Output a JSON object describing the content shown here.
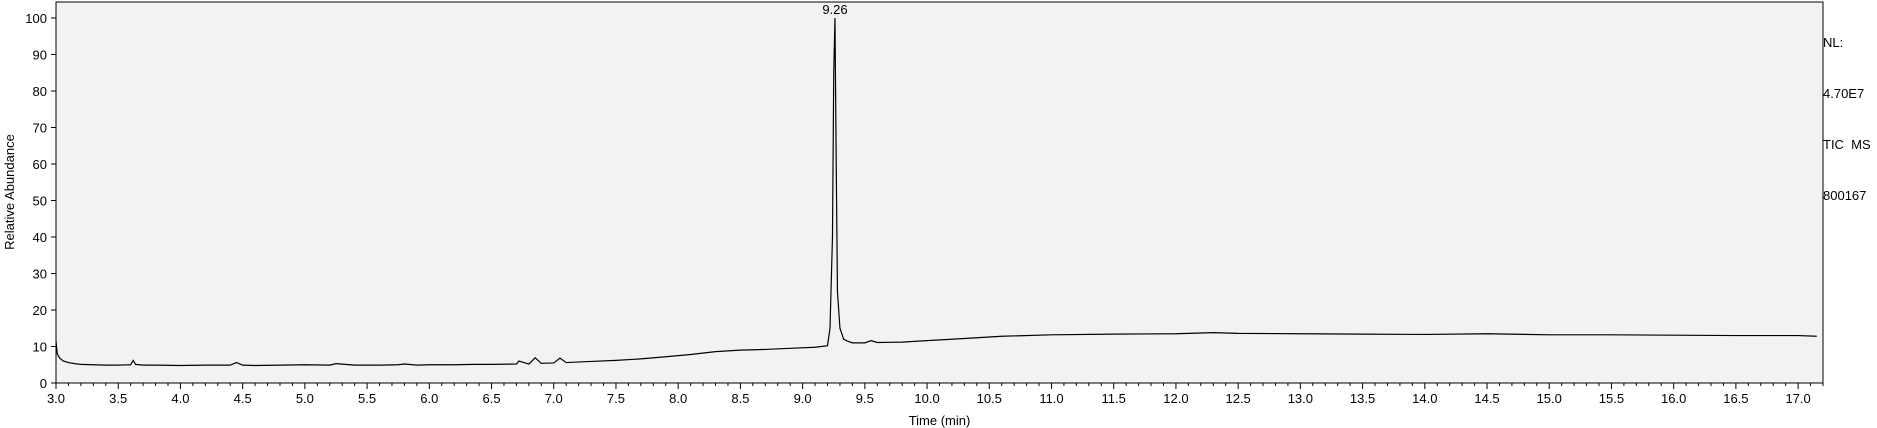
{
  "chart_data": {
    "type": "line",
    "title": "",
    "xlabel": "Time (min)",
    "ylabel": "Relative Abundance",
    "xlim": [
      3.0,
      17.2
    ],
    "ylim": [
      0,
      100
    ],
    "x_ticks": [
      "3.0",
      "3.5",
      "4.0",
      "4.5",
      "5.0",
      "5.5",
      "6.0",
      "6.5",
      "7.0",
      "7.5",
      "8.0",
      "8.5",
      "9.0",
      "9.5",
      "10.0",
      "10.5",
      "11.0",
      "11.5",
      "12.0",
      "12.5",
      "13.0",
      "13.5",
      "14.0",
      "14.5",
      "15.0",
      "15.5",
      "16.0",
      "16.5",
      "17.0"
    ],
    "y_ticks": [
      "0",
      "10",
      "20",
      "30",
      "40",
      "50",
      "60",
      "70",
      "80",
      "90",
      "100"
    ],
    "grid": false,
    "peak_annotation": {
      "label": "9.26",
      "x": 9.26,
      "y": 100
    },
    "info_lines": [
      "NL:",
      "4.70E7",
      "TIC  MS",
      "800167"
    ],
    "series": [
      {
        "x": [
          3.0,
          3.01,
          3.03,
          3.06,
          3.1,
          3.15,
          3.2,
          3.3,
          3.4,
          3.5,
          3.6,
          3.62,
          3.64,
          3.7,
          3.8,
          4.0,
          4.2,
          4.4,
          4.45,
          4.5,
          4.6,
          4.8,
          5.0,
          5.2,
          5.25,
          5.4,
          5.6,
          5.75,
          5.8,
          5.9,
          6.0,
          6.2,
          6.35,
          6.5,
          6.7,
          6.72,
          6.8,
          6.85,
          6.9,
          7.0,
          7.05,
          7.1,
          7.3,
          7.5,
          7.7,
          7.9,
          8.1,
          8.3,
          8.5,
          8.7,
          8.9,
          9.1,
          9.2,
          9.22,
          9.24,
          9.25,
          9.26,
          9.27,
          9.28,
          9.3,
          9.33,
          9.36,
          9.4,
          9.5,
          9.55,
          9.6,
          9.8,
          10.0,
          10.3,
          10.6,
          11.0,
          11.5,
          12.0,
          12.3,
          12.5,
          13.0,
          13.5,
          14.0,
          14.5,
          15.0,
          15.5,
          16.0,
          16.5,
          17.0,
          17.15
        ],
        "y": [
          11.5,
          8.0,
          6.8,
          6.0,
          5.6,
          5.3,
          5.1,
          5.0,
          4.9,
          4.9,
          5.0,
          6.2,
          5.1,
          4.9,
          4.9,
          4.8,
          4.9,
          4.9,
          5.6,
          4.9,
          4.8,
          4.9,
          5.0,
          4.9,
          5.3,
          4.9,
          4.9,
          5.0,
          5.2,
          4.9,
          5.0,
          5.0,
          5.1,
          5.1,
          5.2,
          6.0,
          5.2,
          6.9,
          5.4,
          5.5,
          6.8,
          5.6,
          5.9,
          6.2,
          6.6,
          7.2,
          7.8,
          8.6,
          9.0,
          9.2,
          9.5,
          9.8,
          10.2,
          15,
          40,
          85,
          100,
          60,
          25,
          15,
          12,
          11.5,
          11,
          11,
          11.6,
          11.1,
          11.2,
          11.6,
          12.2,
          12.8,
          13.2,
          13.4,
          13.5,
          13.8,
          13.6,
          13.5,
          13.4,
          13.3,
          13.5,
          13.2,
          13.2,
          13.1,
          13.0,
          13.0,
          12.8
        ]
      }
    ]
  }
}
